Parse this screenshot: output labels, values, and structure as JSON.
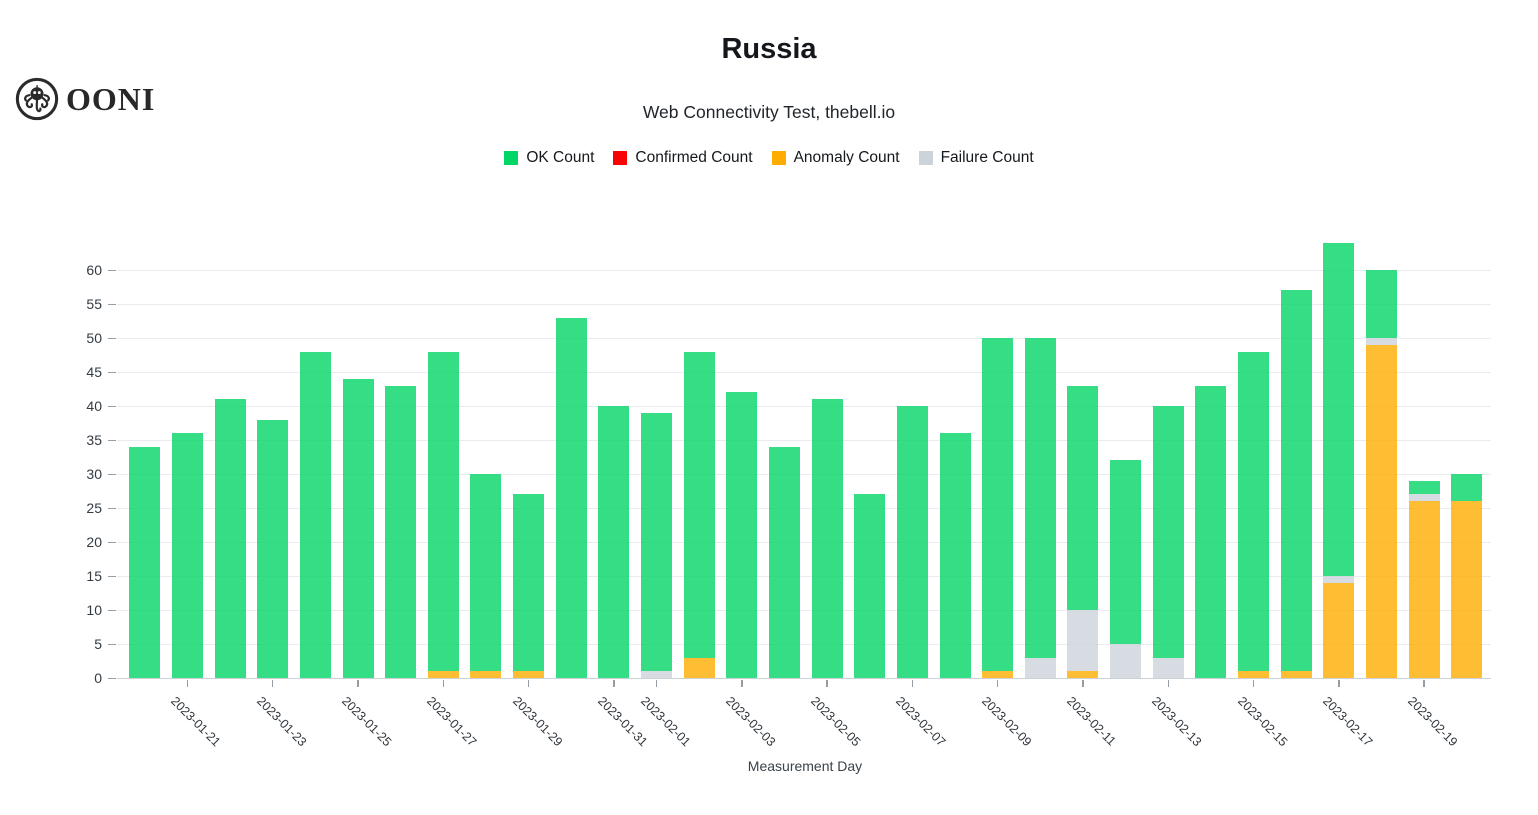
{
  "brand": {
    "logo_text": "OONI"
  },
  "header": {
    "title": "Russia",
    "subtitle": "Web Connectivity Test, thebell.io"
  },
  "legend": [
    {
      "label": "OK Count",
      "color": "#02d667"
    },
    {
      "label": "Confirmed Count",
      "color": "#f70505"
    },
    {
      "label": "Anomaly Count",
      "color": "#ffac00"
    },
    {
      "label": "Failure Count",
      "color": "#ccd3db"
    }
  ],
  "chart_data": {
    "type": "bar",
    "stacked": true,
    "title": "Russia",
    "subtitle": "Web Connectivity Test, thebell.io",
    "xlabel": "Measurement Day",
    "ylabel": "",
    "ylim": [
      0,
      65
    ],
    "y_ticks": [
      0,
      5,
      10,
      15,
      20,
      25,
      30,
      35,
      40,
      45,
      50,
      55,
      60
    ],
    "grid": true,
    "legend_position": "top",
    "x": [
      "2023-01-20",
      "2023-01-21",
      "2023-01-22",
      "2023-01-23",
      "2023-01-24",
      "2023-01-25",
      "2023-01-26",
      "2023-01-27",
      "2023-01-28",
      "2023-01-29",
      "2023-01-30",
      "2023-01-31",
      "2023-02-01",
      "2023-02-02",
      "2023-02-03",
      "2023-02-04",
      "2023-02-05",
      "2023-02-06",
      "2023-02-07",
      "2023-02-08",
      "2023-02-09",
      "2023-02-10",
      "2023-02-11",
      "2023-02-12",
      "2023-02-13",
      "2023-02-14",
      "2023-02-15",
      "2023-02-16",
      "2023-02-17",
      "2023-02-18",
      "2023-02-19",
      "2023-02-20"
    ],
    "x_tick_labels": [
      "2023-01-21",
      "2023-01-23",
      "2023-01-25",
      "2023-01-27",
      "2023-01-29",
      "2023-01-31",
      "2023-02-01",
      "2023-02-03",
      "2023-02-05",
      "2023-02-07",
      "2023-02-09",
      "2023-02-11",
      "2023-02-13",
      "2023-02-15",
      "2023-02-17",
      "2023-02-19"
    ],
    "x_tick_bar_indices": [
      1,
      3,
      5,
      7,
      9,
      11,
      12,
      14,
      16,
      18,
      20,
      22,
      24,
      26,
      28,
      30
    ],
    "stack_order_bottom_to_top": [
      "Confirmed Count",
      "Anomaly Count",
      "Failure Count",
      "OK Count"
    ],
    "series": [
      {
        "name": "OK Count",
        "color": "#02d667",
        "values": [
          34,
          36,
          41,
          38,
          48,
          44,
          43,
          47,
          29,
          26,
          53,
          40,
          38,
          45,
          42,
          34,
          41,
          27,
          40,
          36,
          49,
          47,
          33,
          27,
          37,
          43,
          47,
          56,
          49,
          10,
          2,
          4
        ]
      },
      {
        "name": "Confirmed Count",
        "color": "#f70505",
        "values": [
          0,
          0,
          0,
          0,
          0,
          0,
          0,
          0,
          0,
          0,
          0,
          0,
          0,
          0,
          0,
          0,
          0,
          0,
          0,
          0,
          0,
          0,
          0,
          0,
          0,
          0,
          0,
          0,
          0,
          0,
          0,
          0
        ]
      },
      {
        "name": "Anomaly Count",
        "color": "#ffac00",
        "values": [
          0,
          0,
          0,
          0,
          0,
          0,
          0,
          1,
          1,
          1,
          0,
          0,
          0,
          3,
          0,
          0,
          0,
          0,
          0,
          0,
          1,
          0,
          1,
          0,
          0,
          0,
          1,
          1,
          14,
          49,
          26,
          26
        ]
      },
      {
        "name": "Failure Count",
        "color": "#ccd3db",
        "values": [
          0,
          0,
          0,
          0,
          0,
          0,
          0,
          0,
          0,
          0,
          0,
          0,
          1,
          0,
          0,
          0,
          0,
          0,
          0,
          0,
          0,
          3,
          9,
          5,
          3,
          0,
          0,
          0,
          1,
          1,
          1,
          0
        ]
      }
    ],
    "totals": [
      34,
      36,
      41,
      38,
      48,
      44,
      43,
      48,
      30,
      27,
      53,
      40,
      39,
      48,
      42,
      34,
      41,
      27,
      40,
      36,
      50,
      50,
      43,
      32,
      40,
      43,
      48,
      57,
      64,
      60,
      29,
      30
    ]
  }
}
